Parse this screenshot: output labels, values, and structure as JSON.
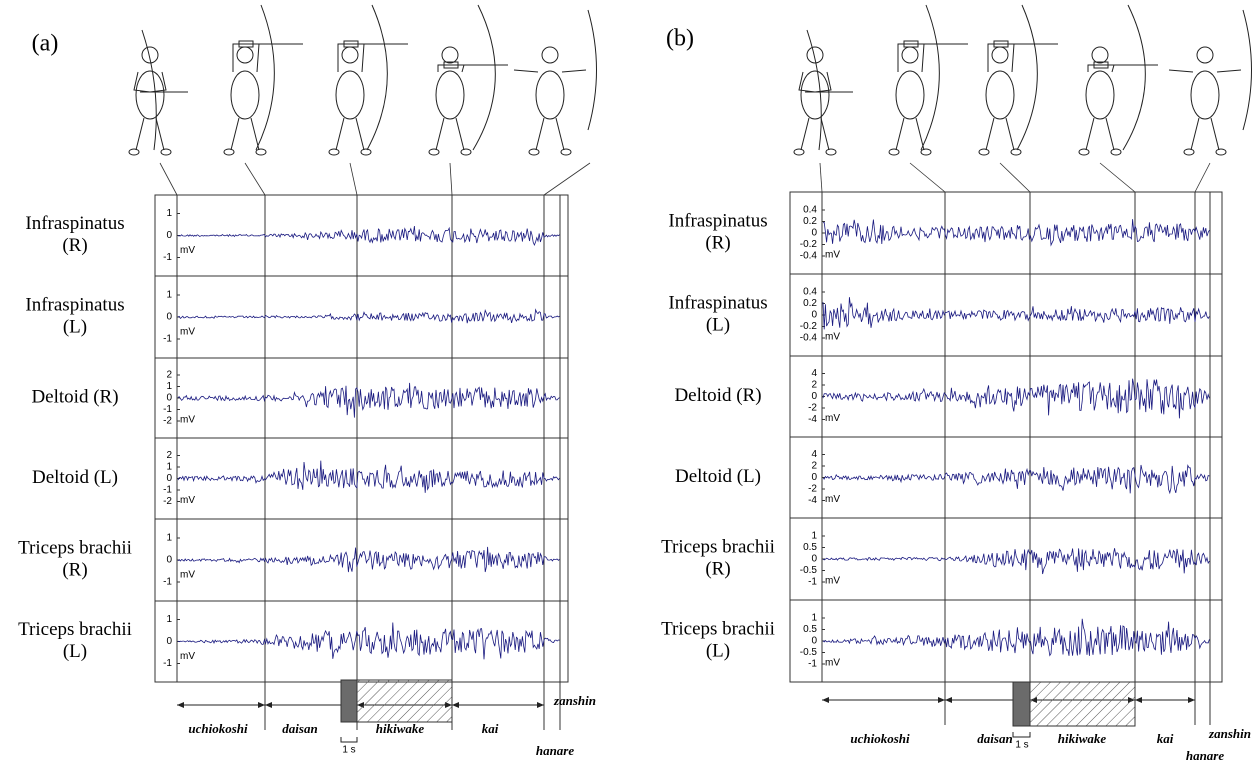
{
  "panels": [
    {
      "label": "(a)",
      "rows": [
        {
          "muscle": [
            "Infraspinatus",
            "(R)"
          ],
          "ticks": [
            "1",
            "0",
            "-1"
          ],
          "unit": "mV"
        },
        {
          "muscle": [
            "Infraspinatus",
            "(L)"
          ],
          "ticks": [
            "1",
            "0",
            "-1"
          ],
          "unit": "mV"
        },
        {
          "muscle": [
            "Deltoid (R)"
          ],
          "ticks": [
            "2",
            "1",
            "0",
            "-1",
            "-2"
          ],
          "unit": "mV"
        },
        {
          "muscle": [
            "Deltoid (L)"
          ],
          "ticks": [
            "2",
            "1",
            "0",
            "-1",
            "-2"
          ],
          "unit": "mV"
        },
        {
          "muscle": [
            "Triceps brachii",
            "(R)"
          ],
          "ticks": [
            "1",
            "0",
            "-1"
          ],
          "unit": "mV"
        },
        {
          "muscle": [
            "Triceps brachii",
            "(L)"
          ],
          "ticks": [
            "1",
            "0",
            "-1"
          ],
          "unit": "mV"
        }
      ],
      "phases": [
        "uchiokoshi",
        "daisan",
        "hikiwake",
        "kai",
        "zanshin",
        "hanare"
      ],
      "scale": "1 s"
    },
    {
      "label": "(b)",
      "rows": [
        {
          "muscle": [
            "Infraspinatus",
            "(R)"
          ],
          "ticks": [
            "0.4",
            "0.2",
            "0",
            "-0.2",
            "-0.4"
          ],
          "unit": "mV"
        },
        {
          "muscle": [
            "Infraspinatus",
            "(L)"
          ],
          "ticks": [
            "0.4",
            "0.2",
            "0",
            "-0.2",
            "-0.4"
          ],
          "unit": "mV"
        },
        {
          "muscle": [
            "Deltoid (R)"
          ],
          "ticks": [
            "4",
            "2",
            "0",
            "-2",
            "-4"
          ],
          "unit": "mV"
        },
        {
          "muscle": [
            "Deltoid (L)"
          ],
          "ticks": [
            "4",
            "2",
            "0",
            "-2",
            "-4"
          ],
          "unit": "mV"
        },
        {
          "muscle": [
            "Triceps brachii",
            "(R)"
          ],
          "ticks": [
            "1",
            "0.5",
            "0",
            "-0.5",
            "-1"
          ],
          "unit": "mV"
        },
        {
          "muscle": [
            "Triceps brachii",
            "(L)"
          ],
          "ticks": [
            "1",
            "0.5",
            "0",
            "-0.5",
            "-1"
          ],
          "unit": "mV"
        }
      ],
      "phases": [
        "uchiokoshi",
        "daisan",
        "hikiwake",
        "kai",
        "zanshin",
        "hanare"
      ],
      "scale": "1 s"
    }
  ]
}
